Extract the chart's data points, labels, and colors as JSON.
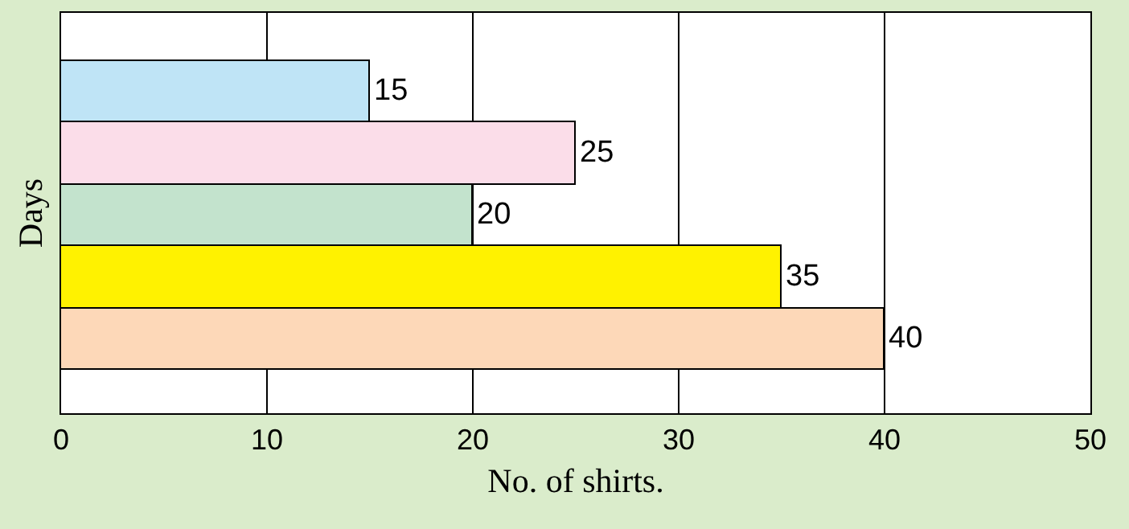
{
  "chart_data": {
    "type": "bar",
    "orientation": "horizontal",
    "xlabel": "No. of shirts.",
    "ylabel": "Days",
    "categories": [
      null,
      null,
      null,
      null,
      null
    ],
    "values": [
      15,
      25,
      20,
      35,
      40
    ],
    "colors": [
      "#bfe4f6",
      "#fbdde9",
      "#c3e3cd",
      "#fff200",
      "#fdd8b8"
    ],
    "xlim": [
      0,
      50
    ],
    "xticks": [
      0,
      10,
      20,
      30,
      40,
      50
    ],
    "grid": "x",
    "data_labels": true
  }
}
